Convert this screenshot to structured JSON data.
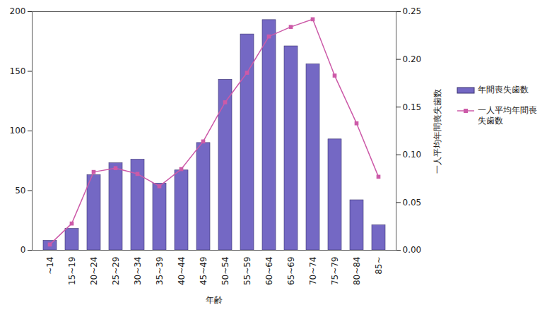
{
  "chart_data": {
    "type": "bar",
    "x_label": "年齢",
    "categories": [
      "~14",
      "15~19",
      "20~24",
      "25~29",
      "30~34",
      "35~39",
      "40~44",
      "45~49",
      "50~54",
      "55~59",
      "60~64",
      "65~69",
      "70~74",
      "75~79",
      "80~84",
      "85~"
    ],
    "series": [
      {
        "name": "年間喪失歯数",
        "type": "bar",
        "color": "#7468c4",
        "values": [
          8,
          18,
          63,
          73,
          76,
          56,
          67,
          90,
          143,
          181,
          193,
          171,
          156,
          93,
          42,
          21
        ]
      },
      {
        "name": "一人平均年間喪失歯数",
        "type": "line",
        "axis": "y2",
        "color": "#cc5aa8",
        "marker": "square",
        "values": [
          0.006,
          0.028,
          0.082,
          0.086,
          0.08,
          0.067,
          0.085,
          0.114,
          0.155,
          0.186,
          0.224,
          0.234,
          0.242,
          0.183,
          0.133,
          0.077
        ]
      }
    ],
    "ylim": [
      0,
      200
    ],
    "yticks": [
      0,
      50,
      100,
      150,
      200
    ],
    "y2lim": [
      0,
      0.25
    ],
    "y2ticks": [
      {
        "value": 0,
        "label": "0.00"
      },
      {
        "value": 0.05,
        "label": "0.05"
      },
      {
        "value": 0.1,
        "label": "0.10"
      },
      {
        "value": 0.15,
        "label": "0.15"
      },
      {
        "value": 0.2,
        "label": "0.20"
      },
      {
        "value": 0.25,
        "label": "0.25"
      }
    ],
    "y2_label": "一人平均年間喪失歯数",
    "legend": "right",
    "grid": false
  }
}
